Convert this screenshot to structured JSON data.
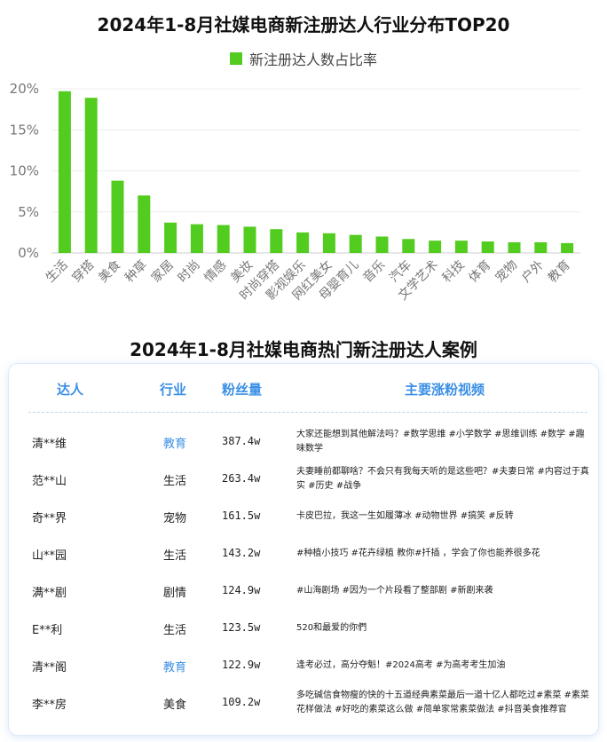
{
  "chart_data": {
    "type": "bar",
    "title": "2024年1-8月社媒电商新注册达人行业分布TOP20",
    "legend": [
      "新注册达人数占比率"
    ],
    "legend_placement": "top-center",
    "categories": [
      "生活",
      "穿搭",
      "美食",
      "种草",
      "家居",
      "时尚",
      "情感",
      "美妆",
      "时尚穿搭",
      "影视娱乐",
      "网红美女",
      "母婴育儿",
      "音乐",
      "汽车",
      "文学艺术",
      "科技",
      "体育",
      "宠物",
      "户外",
      "教育"
    ],
    "series": [
      {
        "name": "新注册达人数占比率",
        "values": [
          19.7,
          18.9,
          8.8,
          7.0,
          3.7,
          3.5,
          3.4,
          3.2,
          2.9,
          2.5,
          2.4,
          2.2,
          2.0,
          1.7,
          1.5,
          1.5,
          1.4,
          1.3,
          1.3,
          1.2
        ]
      }
    ],
    "ylim": [
      0,
      20
    ],
    "yticks": [
      0,
      5,
      10,
      15,
      20
    ],
    "ytick_labels": [
      "0%",
      "5%",
      "10%",
      "15%",
      "20%"
    ],
    "grid": true,
    "color": "#52cc1f"
  },
  "table": {
    "title": "2024年1-8月社媒电商热门新注册达人案例",
    "headers": {
      "name": "达人",
      "industry": "行业",
      "fans": "粉丝量",
      "video": "主要涨粉视频"
    },
    "rows": [
      {
        "name": "清**维",
        "industry": "教育",
        "fans": "387.4w",
        "video": "大家还能想到其他解法吗？#数学思维 #小学数学 #思维训练 #数学 #趣味数学",
        "highlight": true
      },
      {
        "name": "范**山",
        "industry": "生活",
        "fans": "263.4w",
        "video": "夫妻睡前都聊啥？不会只有我每天听的是这些吧？#夫妻日常 #内容过于真实 #历史 #战争",
        "highlight": false
      },
      {
        "name": "奇**界",
        "industry": "宠物",
        "fans": "161.5w",
        "video": "卡皮巴拉，我这一生如履薄冰 #动物世界 #搞笑 #反转",
        "highlight": false
      },
      {
        "name": "山**园",
        "industry": "生活",
        "fans": "143.2w",
        "video": "#种植小技巧 #花卉绿植 教你#扦插 ，学会了你也能养很多花",
        "highlight": false
      },
      {
        "name": "满**剧",
        "industry": "剧情",
        "fans": "124.9w",
        "video": "#山海剧场 #因为一个片段看了整部剧 #新剧来袭",
        "highlight": false
      },
      {
        "name": "E**利",
        "industry": "生活",
        "fans": "123.5w",
        "video": "520和最爱的你們",
        "highlight": false
      },
      {
        "name": "清**阁",
        "industry": "教育",
        "fans": "122.9w",
        "video": "逢考必过，高分夺魁！#2024高考 #为高考考生加油",
        "highlight": true
      },
      {
        "name": "李**房",
        "industry": "美食",
        "fans": "109.2w",
        "video": "多吃碱信食物瘦的快的十五道经典素菜最后一道十亿人都吃过#素菜 #素菜花样做法 #好吃的素菜这么做 #简单家常素菜做法 #抖音美食推荐官",
        "highlight": false
      }
    ]
  }
}
